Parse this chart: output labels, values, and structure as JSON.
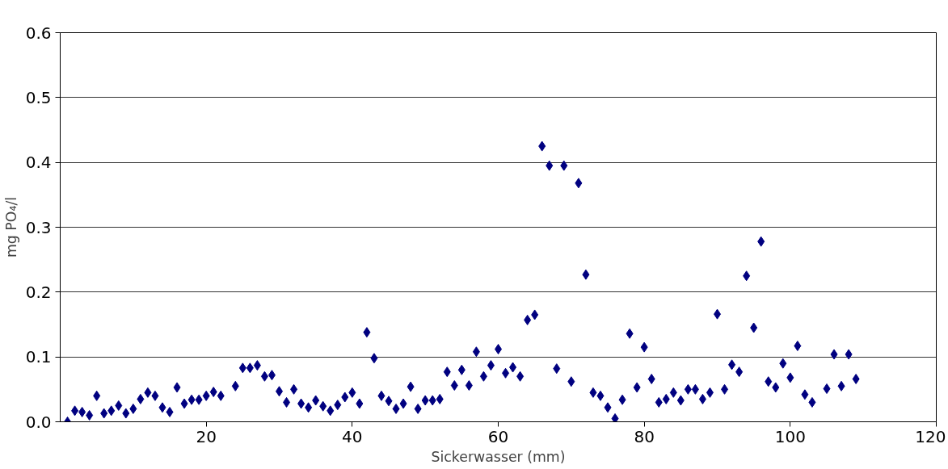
{
  "chart_data": {
    "type": "scatter",
    "xlabel": "Sickerwasser (mm)",
    "ylabel": "mg PO₄/l",
    "x": [
      1,
      2,
      3,
      4,
      5,
      6,
      7,
      8,
      9,
      10,
      11,
      12,
      13,
      14,
      15,
      16,
      17,
      18,
      19,
      20,
      21,
      22,
      24,
      25,
      26,
      27,
      28,
      29,
      30,
      31,
      32,
      33,
      34,
      35,
      36,
      37,
      38,
      39,
      40,
      41,
      42,
      43,
      44,
      45,
      46,
      47,
      48,
      49,
      50,
      51,
      52,
      53,
      54,
      55,
      56,
      57,
      58,
      59,
      60,
      61,
      62,
      63,
      64,
      65,
      66,
      67,
      68,
      69,
      70,
      71,
      72,
      73,
      74,
      75,
      76,
      77,
      78,
      79,
      80,
      81,
      82,
      83,
      84,
      85,
      86,
      87,
      88,
      89,
      90,
      91,
      92,
      93,
      94,
      95,
      96,
      97,
      98,
      99,
      100,
      101,
      102,
      103,
      105,
      106,
      107,
      108,
      109
    ],
    "series": [
      {
        "color": "#000080",
        "values": [
          0.0,
          0.017,
          0.015,
          0.01,
          0.04,
          0.013,
          0.017,
          0.025,
          0.013,
          0.02,
          0.035,
          0.045,
          0.04,
          0.022,
          0.015,
          0.053,
          0.028,
          0.034,
          0.034,
          0.04,
          0.046,
          0.04,
          0.055,
          0.083,
          0.083,
          0.087,
          0.07,
          0.072,
          0.047,
          0.03,
          0.05,
          0.028,
          0.022,
          0.033,
          0.024,
          0.017,
          0.026,
          0.038,
          0.045,
          0.028,
          0.138,
          0.098,
          0.04,
          0.032,
          0.02,
          0.028,
          0.054,
          0.02,
          0.033,
          0.033,
          0.035,
          0.077,
          0.056,
          0.08,
          0.056,
          0.108,
          0.07,
          0.087,
          0.112,
          0.075,
          0.084,
          0.07,
          0.157,
          0.165,
          0.425,
          0.395,
          0.082,
          0.395,
          0.062,
          0.368,
          0.227,
          0.045,
          0.04,
          0.022,
          0.005,
          0.034,
          0.136,
          0.053,
          0.115,
          0.066,
          0.03,
          0.035,
          0.045,
          0.033,
          0.05,
          0.05,
          0.035,
          0.045,
          0.166,
          0.05,
          0.088,
          0.077,
          0.225,
          0.145,
          0.278,
          0.062,
          0.053,
          0.09,
          0.068,
          0.117,
          0.042,
          0.03,
          0.051,
          0.104,
          0.055,
          0.104,
          0.066
        ]
      }
    ],
    "xlim": [
      0,
      120
    ],
    "xticks": [
      20,
      40,
      60,
      80,
      100,
      120
    ],
    "ylim": [
      0,
      0.6
    ],
    "yticks": [
      {
        "value": 0,
        "label": "0.0"
      },
      0.1,
      0.2,
      0.3,
      0.4,
      0.5,
      0.6
    ],
    "grid": "y",
    "marker": "diamond"
  }
}
